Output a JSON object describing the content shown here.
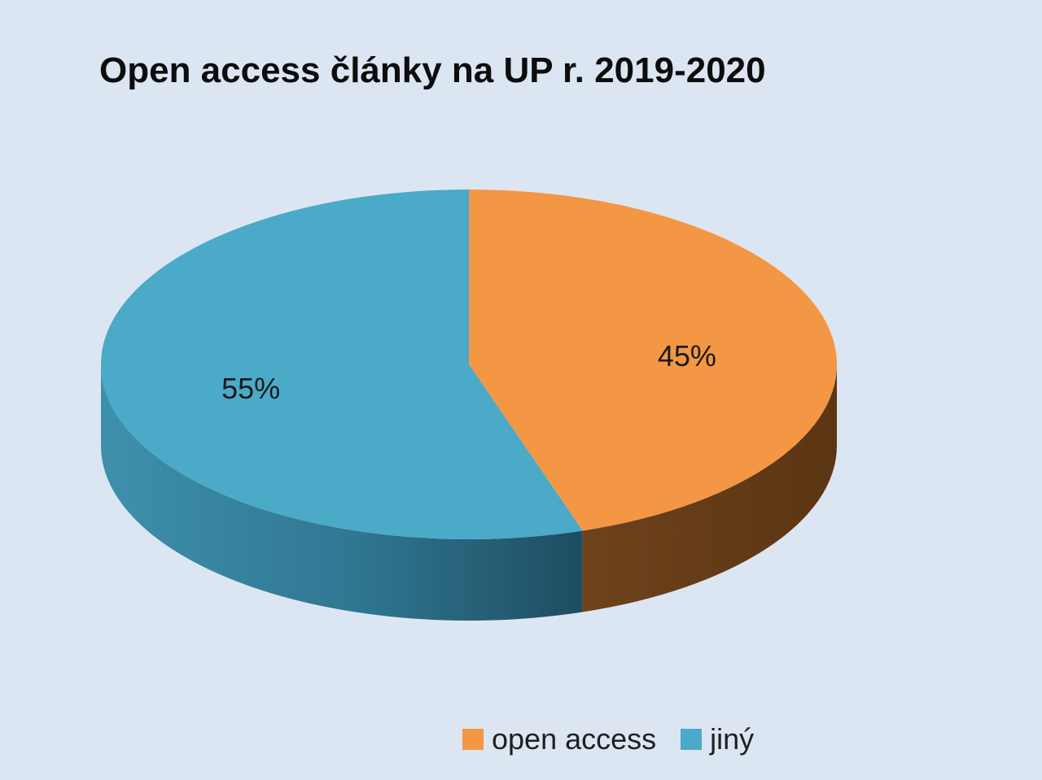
{
  "chart_data": {
    "type": "pie",
    "title": "Open access články na UP r. 2019-2020",
    "categories": [
      "open access",
      "jiný"
    ],
    "values": [
      45,
      55
    ],
    "data_labels": [
      "45%",
      "55%"
    ],
    "colors": [
      "#f39744",
      "#4aaac8"
    ],
    "legend": "bottom-right",
    "style": "3d"
  }
}
